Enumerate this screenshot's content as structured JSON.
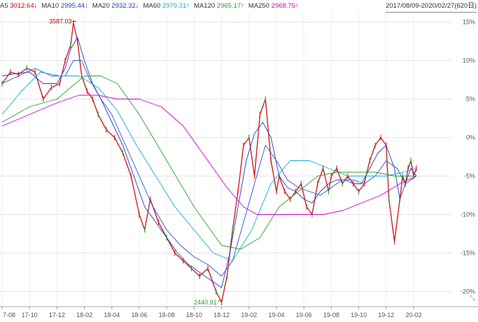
{
  "legend": {
    "items": [
      {
        "label": "A5",
        "value": "3012.64↓",
        "color": "#cc0000"
      },
      {
        "label": "MA10",
        "value": "2995.44↓",
        "color": "#1f3fbf"
      },
      {
        "label": "MA20",
        "value": "2932.32↓",
        "color": "#1f3fbf"
      },
      {
        "label": "MA60",
        "value": "2979.31↑",
        "color": "#17a9d6"
      },
      {
        "label": "MA120",
        "value": "2965.17↑",
        "color": "#2ca02c"
      },
      {
        "label": "MA250",
        "value": "2968.75↑",
        "color": "#cc00cc"
      }
    ],
    "range": "2017/08/09-2020/02/27(620日)"
  },
  "chart_data": {
    "type": "line",
    "x_ticks": [
      "7-08",
      "17-10",
      "17-12",
      "18-02",
      "18-04",
      "18-06",
      "18-08",
      "18-10",
      "18-12",
      "19-02",
      "19-04",
      "19-06",
      "19-08",
      "19-10",
      "19-12",
      "20-02"
    ],
    "y_ticks": [
      "15%",
      "10%",
      "5%",
      "0%",
      "-5%",
      "-10%",
      "-15%",
      "-20%"
    ],
    "y_values": [
      15,
      10,
      5,
      0,
      -5,
      -10,
      -15,
      -20
    ],
    "ylim": [
      -21.5,
      16.5
    ],
    "x_range": [
      0,
      15.3
    ],
    "gridlines": true,
    "annotations": [
      {
        "text": "3587.03",
        "x": 2.62,
        "y": 14.9,
        "color": "#cc0000"
      },
      {
        "text": "2440.91",
        "x": 7.9,
        "y": -21.4,
        "color": "#2ca02c"
      }
    ],
    "series": [
      {
        "key": "price",
        "color": "#cc2222",
        "x": [
          0,
          0.3,
          0.6,
          0.9,
          1.2,
          1.5,
          1.8,
          2.1,
          2.3,
          2.5,
          2.6,
          2.75,
          2.9,
          3.1,
          3.3,
          3.5,
          3.8,
          4.1,
          4.4,
          4.7,
          5.0,
          5.2,
          5.4,
          5.7,
          6.0,
          6.3,
          6.6,
          6.9,
          7.2,
          7.5,
          7.8,
          8.0,
          8.2,
          8.4,
          8.6,
          8.8,
          9.0,
          9.2,
          9.4,
          9.6,
          9.8,
          10.0,
          10.1,
          10.3,
          10.5,
          10.7,
          10.9,
          11.1,
          11.3,
          11.5,
          11.7,
          11.9,
          12.0,
          12.2,
          12.4,
          12.6,
          12.8,
          13.0,
          13.2,
          13.4,
          13.6,
          13.8,
          14.0,
          14.1,
          14.3,
          14.5,
          14.6,
          14.7,
          14.8,
          14.9,
          15.0,
          15.1
        ],
        "y": [
          7,
          8.5,
          8.2,
          9,
          8.5,
          5,
          6.5,
          7,
          10,
          12,
          14.9,
          12.5,
          8,
          6,
          5,
          3,
          1,
          0,
          -2,
          -5,
          -10,
          -12,
          -8,
          -11,
          -13,
          -15,
          -16,
          -17,
          -18,
          -17,
          -20,
          -21.4,
          -18,
          -12,
          -7,
          -1,
          0,
          -5,
          3,
          5,
          -3,
          -7,
          -5,
          -7,
          -8,
          -7,
          -6,
          -9,
          -10,
          -6,
          -4,
          -7,
          -5,
          -4,
          -6,
          -5,
          -6,
          -7,
          -6,
          -3,
          -1,
          0,
          -1,
          -8,
          -13.5,
          -8,
          -5,
          -6,
          -4,
          -3,
          -5,
          -4
        ]
      },
      {
        "key": "ma10",
        "color": "#1f3fbf",
        "x": [
          0,
          0.5,
          1.0,
          1.5,
          2.0,
          2.3,
          2.5,
          2.75,
          3.0,
          3.3,
          3.6,
          4.0,
          4.4,
          4.8,
          5.2,
          5.6,
          6.0,
          6.4,
          6.8,
          7.2,
          7.6,
          8.0,
          8.3,
          8.6,
          8.9,
          9.2,
          9.5,
          9.8,
          10.1,
          10.4,
          10.7,
          11.0,
          11.3,
          11.6,
          11.9,
          12.2,
          12.5,
          12.8,
          13.1,
          13.4,
          13.7,
          14.0,
          14.3,
          14.5,
          14.7,
          14.9,
          15.1
        ],
        "y": [
          8,
          8.3,
          8.5,
          7,
          7,
          9,
          11.5,
          13,
          10,
          7,
          5,
          2,
          -1,
          -5,
          -9,
          -11,
          -13,
          -15,
          -16.5,
          -17.5,
          -18.5,
          -19.5,
          -15,
          -9,
          -3,
          0.5,
          2,
          0,
          -5,
          -6.5,
          -7,
          -8,
          -8.5,
          -7,
          -6,
          -5.5,
          -5.5,
          -6,
          -6,
          -4,
          -2,
          -1,
          -4,
          -8,
          -6,
          -4,
          -5
        ]
      },
      {
        "key": "ma20",
        "color": "#3050d0",
        "x": [
          0,
          0.6,
          1.2,
          1.8,
          2.3,
          2.6,
          2.9,
          3.2,
          3.6,
          4.0,
          4.5,
          5.0,
          5.5,
          6.0,
          6.5,
          7.0,
          7.5,
          8.0,
          8.4,
          8.8,
          9.2,
          9.6,
          10.0,
          10.4,
          10.8,
          11.2,
          11.6,
          12.0,
          12.4,
          12.8,
          13.2,
          13.6,
          14.0,
          14.4,
          14.7,
          15.1
        ],
        "y": [
          7,
          8,
          9,
          8,
          8,
          10,
          10,
          7.5,
          5,
          3,
          -1,
          -5,
          -9,
          -12,
          -14,
          -15.5,
          -16.5,
          -18,
          -16,
          -11,
          -6,
          -1,
          -3,
          -5.5,
          -6.5,
          -7,
          -7.5,
          -6.5,
          -5.5,
          -5.5,
          -6,
          -5,
          -3,
          -4,
          -6,
          -5
        ]
      },
      {
        "key": "ma60",
        "color": "#17a9d6",
        "x": [
          0,
          0.7,
          1.4,
          2.1,
          2.8,
          3.5,
          4.2,
          4.9,
          5.6,
          6.3,
          7.0,
          7.7,
          8.4,
          9.1,
          9.8,
          10.5,
          11.2,
          11.9,
          12.6,
          13.3,
          14.0,
          14.6,
          15.1
        ],
        "y": [
          3,
          6,
          8.5,
          8,
          8,
          6.5,
          3.5,
          -1,
          -5,
          -9,
          -12,
          -15,
          -16,
          -12,
          -6,
          -3,
          -3,
          -4,
          -5,
          -5,
          -5,
          -4.5,
          -4
        ]
      },
      {
        "key": "ma120",
        "color": "#2ca02c",
        "x": [
          0,
          1.0,
          2.0,
          3.0,
          3.6,
          4.2,
          5.0,
          6.0,
          7.0,
          8.0,
          8.7,
          9.4,
          10.1,
          10.8,
          11.5,
          12.2,
          12.9,
          13.6,
          14.3,
          15.1
        ],
        "y": [
          2,
          4,
          5,
          8,
          8,
          7,
          3,
          -3,
          -9,
          -14,
          -14.5,
          -13,
          -9,
          -7,
          -5,
          -4.5,
          -4.5,
          -4.5,
          -5,
          -5
        ]
      },
      {
        "key": "ma250",
        "color": "#cc00cc",
        "x": [
          0,
          1.0,
          2.0,
          2.8,
          3.5,
          4.2,
          5.0,
          5.8,
          6.6,
          7.4,
          8.2,
          8.8,
          9.3,
          9.8,
          10.4,
          11.0,
          11.7,
          12.4,
          13.1,
          13.8,
          14.5,
          15.1
        ],
        "y": [
          1.5,
          3,
          4.5,
          5.5,
          5.5,
          5,
          5,
          4,
          1.5,
          -2.5,
          -6.5,
          -9,
          -10,
          -10,
          -10,
          -10,
          -10,
          -9.5,
          -8.5,
          -7.5,
          -6,
          -5
        ]
      }
    ]
  }
}
